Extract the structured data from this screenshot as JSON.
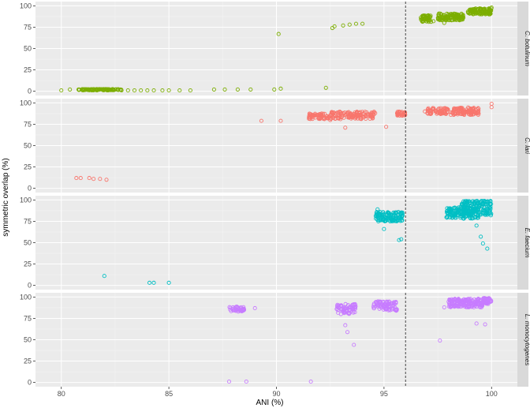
{
  "chart_data": {
    "type": "scatter",
    "xlabel": "ANI (%)",
    "ylabel": "symmetric overlap (%)",
    "xlim": [
      78.8,
      101.2
    ],
    "ylim": [
      -5,
      105
    ],
    "x_ticks": [
      80,
      85,
      90,
      95,
      100
    ],
    "y_ticks": [
      0,
      25,
      50,
      75,
      100
    ],
    "vline_x": 96,
    "grid": true,
    "legend": "none",
    "facets": [
      {
        "label": "C. botulinum",
        "color": "#7cae00",
        "points": [
          [
            80,
            1
          ],
          [
            80.4,
            2
          ],
          [
            80.8,
            2
          ],
          [
            81,
            2
          ],
          [
            81.3,
            2
          ],
          [
            81.6,
            2
          ],
          [
            81.9,
            2
          ],
          [
            82.2,
            2
          ],
          [
            82.5,
            2
          ],
          [
            82.8,
            1
          ],
          [
            83.1,
            1
          ],
          [
            83.4,
            1
          ],
          [
            83.7,
            1
          ],
          [
            84,
            1
          ],
          [
            84.3,
            1
          ],
          [
            84.7,
            1
          ],
          [
            85,
            1
          ],
          [
            85.5,
            1
          ],
          [
            86,
            1
          ],
          [
            87.1,
            2
          ],
          [
            87.6,
            2
          ],
          [
            88.2,
            2
          ],
          [
            88.8,
            2
          ],
          [
            89.9,
            2
          ],
          [
            90.2,
            3
          ],
          [
            92.3,
            4
          ],
          [
            90.1,
            67
          ],
          [
            92.6,
            74
          ],
          [
            92.7,
            76
          ],
          [
            93.1,
            77
          ],
          [
            93.4,
            78
          ],
          [
            93.7,
            79
          ],
          [
            94,
            79
          ],
          [
            96.8,
            84
          ],
          [
            97,
            86
          ],
          [
            97.3,
            82
          ],
          [
            97.8,
            80
          ],
          [
            98,
            86
          ],
          [
            98.3,
            88
          ],
          [
            98.6,
            86
          ],
          [
            99,
            92
          ],
          [
            99.4,
            93
          ],
          [
            99.7,
            94
          ],
          [
            99.9,
            96
          ],
          [
            100,
            98
          ]
        ],
        "clusters": [
          {
            "x": [
              80.8,
              82.8
            ],
            "y": [
              1,
              2.5
            ],
            "n": 90
          },
          {
            "x": [
              96.7,
              97.2
            ],
            "y": [
              81,
              89
            ],
            "n": 50
          },
          {
            "x": [
              97.5,
              98.7
            ],
            "y": [
              83,
              91
            ],
            "n": 110
          },
          {
            "x": [
              98.9,
              100
            ],
            "y": [
              90,
              97
            ],
            "n": 110
          }
        ]
      },
      {
        "label": "C. lari",
        "color": "#f8766d",
        "points": [
          [
            80.7,
            12
          ],
          [
            80.9,
            12
          ],
          [
            81.3,
            12
          ],
          [
            81.5,
            11
          ],
          [
            81.8,
            11
          ],
          [
            82.1,
            10
          ],
          [
            89.3,
            79
          ],
          [
            90.2,
            79
          ],
          [
            92.5,
            80
          ],
          [
            93.2,
            71
          ],
          [
            95.1,
            72
          ],
          [
            96.9,
            90
          ],
          [
            100,
            95
          ],
          [
            100,
            99
          ]
        ],
        "clusters": [
          {
            "x": [
              91.5,
              92.5
            ],
            "y": [
              81,
              88
            ],
            "n": 60
          },
          {
            "x": [
              92.5,
              94.6
            ],
            "y": [
              81,
              90
            ],
            "n": 140
          },
          {
            "x": [
              95.6,
              96
            ],
            "y": [
              85,
              90
            ],
            "n": 35
          },
          {
            "x": [
              97,
              98
            ],
            "y": [
              87,
              94
            ],
            "n": 70
          },
          {
            "x": [
              98.1,
              99.4
            ],
            "y": [
              86,
              95
            ],
            "n": 110
          }
        ]
      },
      {
        "label": "E. faecium",
        "color": "#00bfc4",
        "points": [
          [
            82,
            11
          ],
          [
            84.1,
            3
          ],
          [
            84.3,
            3
          ],
          [
            85,
            3
          ],
          [
            94.7,
            89
          ],
          [
            95,
            66
          ],
          [
            95.7,
            53
          ],
          [
            95.8,
            54
          ],
          [
            99.3,
            70
          ],
          [
            99.5,
            57
          ],
          [
            99.6,
            49
          ],
          [
            99.8,
            43
          ]
        ],
        "clusters": [
          {
            "x": [
              94.6,
              95.9
            ],
            "y": [
              75,
              86
            ],
            "n": 120
          },
          {
            "x": [
              97.9,
              99.4
            ],
            "y": [
              78,
              92
            ],
            "n": 150
          },
          {
            "x": [
              98.6,
              100
            ],
            "y": [
              82,
              99
            ],
            "n": 160
          }
        ]
      },
      {
        "label": "L. monocytogenes",
        "color": "#c77cff",
        "points": [
          [
            87.8,
            1
          ],
          [
            88.6,
            1
          ],
          [
            91.6,
            1
          ],
          [
            89,
            87
          ],
          [
            92.8,
            86
          ],
          [
            93,
            80
          ],
          [
            93.2,
            67
          ],
          [
            93.3,
            59
          ],
          [
            93.6,
            44
          ],
          [
            97.6,
            49
          ],
          [
            97.8,
            88
          ],
          [
            99.3,
            69
          ],
          [
            99.7,
            68
          ]
        ],
        "clusters": [
          {
            "x": [
              87.8,
              88.5
            ],
            "y": [
              83,
              89
            ],
            "n": 45
          },
          {
            "x": [
              92.8,
              93.7
            ],
            "y": [
              80,
              92
            ],
            "n": 70
          },
          {
            "x": [
              94.5,
              95.6
            ],
            "y": [
              84,
              95
            ],
            "n": 90
          },
          {
            "x": [
              98,
              99.6
            ],
            "y": [
              88,
              98
            ],
            "n": 160
          },
          {
            "x": [
              99.6,
              100
            ],
            "y": [
              92,
              99
            ],
            "n": 50
          }
        ]
      }
    ]
  }
}
